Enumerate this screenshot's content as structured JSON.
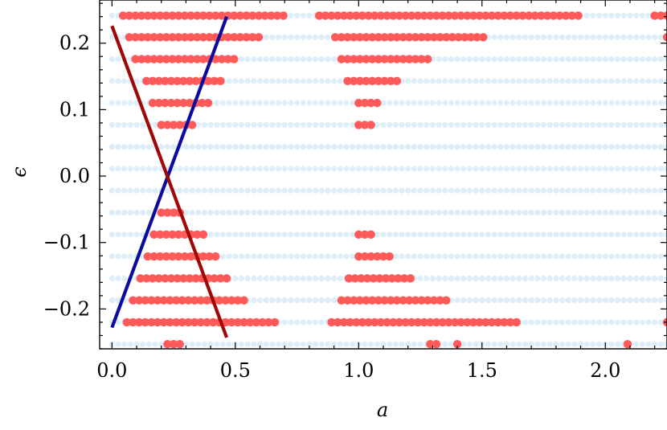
{
  "chart_data": {
    "type": "scatter",
    "title": "",
    "xlabel": "a",
    "ylabel": "ϵ",
    "xlim": [
      -0.05,
      2.25
    ],
    "ylim": [
      -0.26,
      0.265
    ],
    "x_ticks": [
      0.0,
      0.5,
      1.0,
      1.5,
      2.0
    ],
    "x_tick_labels": [
      "0.0",
      "0.5",
      "1.0",
      "1.5",
      "2.0"
    ],
    "y_ticks": [
      -0.2,
      -0.1,
      0.0,
      0.1,
      0.2
    ],
    "y_tick_labels": [
      "−0.2",
      "−0.1",
      "0.0",
      "0.1",
      "0.2"
    ],
    "grid": false,
    "background_points": {
      "color": "#ddeef9",
      "x_range": [
        0.0,
        2.25
      ],
      "x_step": 0.025,
      "y_levels": [
        0.2415,
        0.209,
        0.176,
        0.143,
        0.11,
        0.077,
        0.044,
        0.011,
        -0.022,
        -0.055,
        -0.088,
        -0.121,
        -0.154,
        -0.187,
        -0.22,
        -0.253
      ]
    },
    "highlight_points": {
      "color": "#ff5a5a",
      "x_step": 0.025,
      "segments": [
        {
          "y": 0.2415,
          "ranges": [
            [
              0.045,
              0.705
            ],
            [
              0.84,
              1.88
            ],
            [
              2.2,
              2.25
            ]
          ]
        },
        {
          "y": 0.209,
          "ranges": [
            [
              0.07,
              0.6
            ],
            [
              0.905,
              1.51
            ],
            [
              2.25,
              2.25
            ]
          ]
        },
        {
          "y": 0.176,
          "ranges": [
            [
              0.095,
              0.5
            ],
            [
              0.93,
              1.285
            ]
          ]
        },
        {
          "y": 0.143,
          "ranges": [
            [
              0.14,
              0.43
            ],
            [
              0.955,
              1.16
            ]
          ]
        },
        {
          "y": 0.11,
          "ranges": [
            [
              0.165,
              0.38
            ],
            [
              1.0,
              1.085
            ]
          ]
        },
        {
          "y": 0.077,
          "ranges": [
            [
              0.2,
              0.33
            ],
            [
              1.0,
              1.04
            ]
          ]
        },
        {
          "y": -0.055,
          "ranges": [
            [
              0.2,
              0.28
            ]
          ]
        },
        {
          "y": -0.088,
          "ranges": [
            [
              0.17,
              0.36
            ],
            [
              1.0,
              1.06
            ]
          ]
        },
        {
          "y": -0.121,
          "ranges": [
            [
              0.145,
              0.41
            ],
            [
              1.0,
              1.12
            ]
          ]
        },
        {
          "y": -0.154,
          "ranges": [
            [
              0.115,
              0.465
            ],
            [
              0.96,
              1.21
            ]
          ]
        },
        {
          "y": -0.187,
          "ranges": [
            [
              0.085,
              0.54
            ],
            [
              0.93,
              1.365
            ]
          ]
        },
        {
          "y": -0.22,
          "ranges": [
            [
              0.06,
              0.655
            ],
            [
              0.89,
              1.63
            ],
            [
              2.25,
              2.25
            ]
          ]
        },
        {
          "y": -0.253,
          "ranges": [
            [
              0.225,
              0.27
            ],
            [
              1.29,
              1.325
            ],
            [
              1.4,
              1.4
            ],
            [
              2.09,
              2.09
            ]
          ]
        }
      ]
    },
    "lines": [
      {
        "color": "#0b0ba0",
        "points": [
          [
            0.0,
            -0.228
          ],
          [
            0.465,
            0.24
          ]
        ]
      },
      {
        "color": "#a00808",
        "points": [
          [
            0.0,
            0.226
          ],
          [
            0.465,
            -0.243
          ]
        ]
      }
    ]
  }
}
